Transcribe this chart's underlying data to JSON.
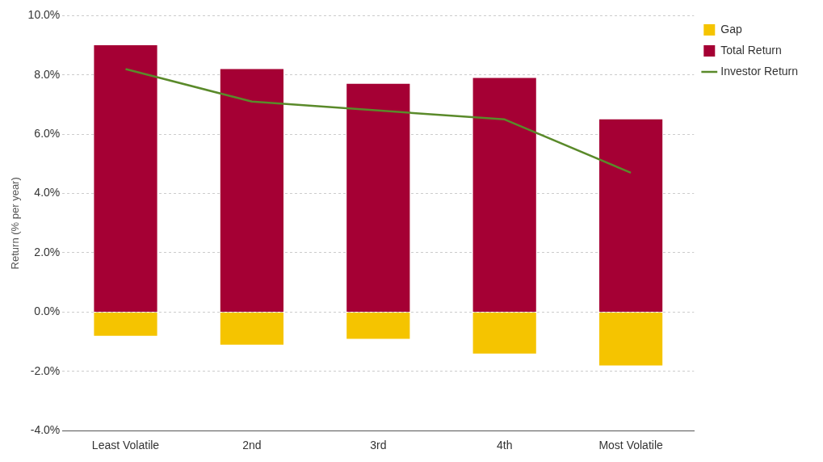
{
  "chart_data": {
    "type": "bar",
    "stacked": true,
    "ylabel": "Return (% per year)",
    "categories": [
      "Least Volatile",
      "2nd",
      "3rd",
      "4th",
      "Most Volatile"
    ],
    "series": [
      {
        "name": "Gap",
        "color": "#f5c400",
        "values": [
          -0.8,
          -1.1,
          -0.9,
          -1.4,
          -1.8
        ]
      },
      {
        "name": "Total Return",
        "color": "#a50034",
        "values": [
          9.0,
          8.2,
          7.7,
          7.9,
          6.5
        ]
      },
      {
        "name": "Investor Return",
        "type": "line",
        "color": "#5a8a2a",
        "marker": "none",
        "values": [
          8.2,
          7.1,
          6.8,
          6.5,
          4.7
        ]
      }
    ],
    "ylim": [
      -4,
      10
    ],
    "yticks": [
      {
        "value": -4,
        "label": "-4.0%"
      },
      {
        "value": -2,
        "label": "-2.0%"
      },
      {
        "value": 0,
        "label": "0.0%"
      },
      {
        "value": 2,
        "label": "2.0%"
      },
      {
        "value": 4,
        "label": "4.0%"
      },
      {
        "value": 6,
        "label": "6.0%"
      },
      {
        "value": 8,
        "label": "8.0%"
      },
      {
        "value": 10,
        "label": "10.0%"
      }
    ],
    "grid": "y",
    "legend": "top right"
  }
}
